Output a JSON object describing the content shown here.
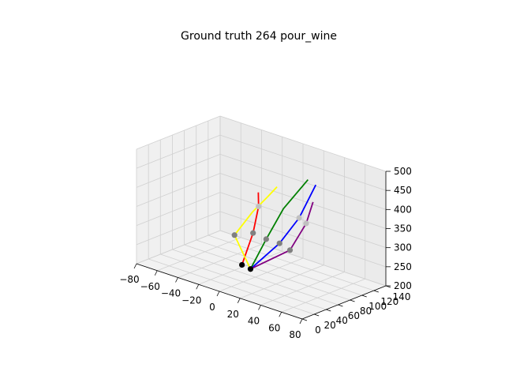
{
  "chart_data": {
    "type": "scatter",
    "title": "Ground truth 264 pour_wine",
    "xlabel": "",
    "ylabel": "",
    "zlabel": "",
    "xlim": [
      -80,
      80
    ],
    "ylim": [
      0,
      140
    ],
    "zlim": [
      200,
      500
    ],
    "x_ticks": [
      "−80",
      "−60",
      "−40",
      "−20",
      "0",
      "20",
      "40",
      "60",
      "80"
    ],
    "y_ticks": [
      "0",
      "20",
      "40",
      "60",
      "80",
      "100",
      "120",
      "140"
    ],
    "z_ticks": [
      "200",
      "250",
      "300",
      "350",
      "400",
      "450",
      "500"
    ],
    "grid": true,
    "series": [
      {
        "color": "#ff0000",
        "points": [
          [
            -3,
            43,
            240
          ],
          [
            -9,
            72,
            300
          ],
          [
            -10,
            83,
            362
          ],
          [
            -12,
            86,
            395
          ]
        ]
      },
      {
        "color": "#ffff00",
        "points": [
          [
            7,
            40,
            240
          ],
          [
            -20,
            60,
            292
          ],
          [
            -17,
            85,
            340
          ],
          [
            -8,
            95,
            382
          ],
          [
            -2,
            100,
            410
          ]
        ]
      },
      {
        "color": "#008000",
        "points": [
          [
            7,
            40,
            240
          ],
          [
            6,
            68,
            300
          ],
          [
            10,
            90,
            370
          ],
          [
            25,
            105,
            450
          ]
        ]
      },
      {
        "color": "#0000ff",
        "points": [
          [
            7,
            40,
            240
          ],
          [
            20,
            66,
            303
          ],
          [
            28,
            85,
            365
          ],
          [
            36,
            99,
            450
          ]
        ]
      },
      {
        "color": "#800080",
        "points": [
          [
            7,
            40,
            240
          ],
          [
            33,
            61,
            300
          ],
          [
            40,
            76,
            367
          ],
          [
            42,
            84,
            420
          ]
        ]
      }
    ],
    "joints": [
      {
        "color": "#000000",
        "point": [
          -3,
          43,
          240
        ]
      },
      {
        "color": "#000000",
        "point": [
          7,
          40,
          240
        ]
      },
      {
        "color": "#808080",
        "point": [
          -9,
          72,
          300
        ]
      },
      {
        "color": "#808080",
        "point": [
          -20,
          60,
          292
        ]
      },
      {
        "color": "#808080",
        "point": [
          6,
          68,
          300
        ]
      },
      {
        "color": "#808080",
        "point": [
          20,
          66,
          303
        ]
      },
      {
        "color": "#808080",
        "point": [
          33,
          61,
          300
        ]
      },
      {
        "color": "#c0c0c0",
        "point": [
          -10,
          83,
          362
        ]
      },
      {
        "color": "#c0c0c0",
        "point": [
          28,
          85,
          365
        ]
      },
      {
        "color": "#c0c0c0",
        "point": [
          40,
          76,
          367
        ]
      }
    ]
  }
}
